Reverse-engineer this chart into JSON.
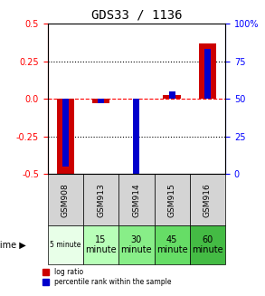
{
  "title": "GDS33 / 1136",
  "samples": [
    "GSM908",
    "GSM913",
    "GSM914",
    "GSM915",
    "GSM916"
  ],
  "log_ratio": [
    -0.5,
    -0.03,
    0.0,
    0.025,
    0.37
  ],
  "percentile_rank": [
    5.0,
    47.0,
    0.0,
    55.0,
    83.0
  ],
  "time_labels": [
    "5 minute",
    "15\nminute",
    "30\nminute",
    "45\nminute",
    "60\nminute"
  ],
  "time_colors": [
    "#ccffcc",
    "#aaffaa",
    "#88ee88",
    "#66dd66",
    "#44cc44"
  ],
  "bar_color_red": "#cc0000",
  "bar_color_blue": "#0000cc",
  "ylim_left": [
    -0.5,
    0.5
  ],
  "ylim_right": [
    0,
    100
  ],
  "yticks_left": [
    -0.5,
    -0.25,
    0.0,
    0.25,
    0.5
  ],
  "yticks_right": [
    0,
    25,
    50,
    75,
    100
  ],
  "legend_red": "log ratio",
  "legend_blue": "percentile rank within the sample",
  "background_plot": "#f0f0f0",
  "background_table_gsm": "#d0d0d0",
  "grid_color": "#000000"
}
